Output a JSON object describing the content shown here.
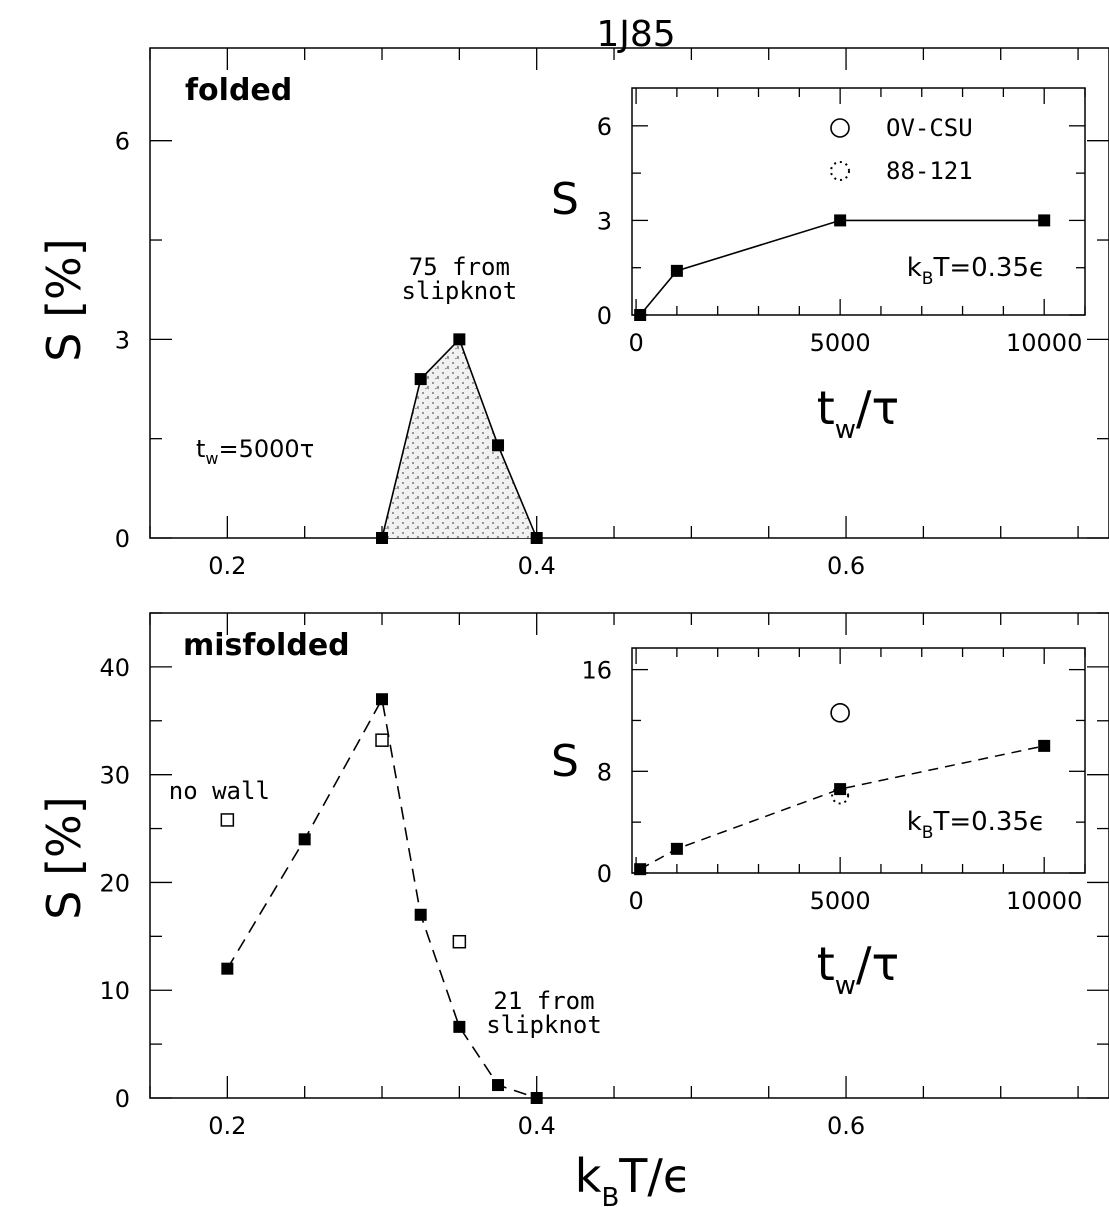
{
  "figure_title": "1J85",
  "chart_data": [
    {
      "id": "folded-main",
      "type": "area",
      "panel_label": "folded",
      "xlabel_main": "k",
      "xlabel_sub": "B",
      "xlabel_tail": "T/ϵ",
      "ylabel": "S [%]",
      "xlim": [
        0.15,
        0.77
      ],
      "ylim": [
        0,
        7.4
      ],
      "xticks": [
        0.2,
        0.4,
        0.6
      ],
      "xtick_labels": [
        "0.2",
        "0.4",
        "0.6"
      ],
      "yticks": [
        0,
        3,
        6
      ],
      "ytick_labels": [
        "0",
        "3",
        "6"
      ],
      "series": [
        {
          "x": [
            0.3,
            0.325,
            0.35,
            0.375,
            0.4
          ],
          "y": [
            0,
            2.4,
            3.0,
            1.4,
            0
          ]
        }
      ],
      "annotations": [
        {
          "text": "75 from",
          "x": 0.35,
          "y": 4.2
        },
        {
          "text": "slipknot",
          "x": 0.35,
          "y": 3.8
        },
        {
          "text_main": "t",
          "text_sub": "w",
          "text_tail": "=5000τ",
          "x": 0.2,
          "y": 1.35
        }
      ]
    },
    {
      "id": "folded-inset",
      "type": "line",
      "xlabel_main": "t",
      "xlabel_sub": "w",
      "xlabel_tail": "/τ",
      "ylabel": "S",
      "xlim": [
        -100,
        11000
      ],
      "ylim": [
        0,
        7.2
      ],
      "xticks": [
        0,
        5000,
        10000
      ],
      "xtick_labels": [
        "0",
        "5000",
        "10000"
      ],
      "yticks": [
        0,
        3,
        6
      ],
      "ytick_labels": [
        "0",
        "3",
        "6"
      ],
      "series": [
        {
          "x": [
            100,
            1000,
            5000,
            10000
          ],
          "y": [
            0,
            1.4,
            3.0,
            3.0
          ]
        }
      ],
      "legend": [
        {
          "label": "OV-CSU",
          "marker": "circle"
        },
        {
          "label": "88-121",
          "marker": "dotted-circle"
        }
      ],
      "condition": {
        "main": "k",
        "sub": "B",
        "tail": "T=0.35ϵ"
      }
    },
    {
      "id": "misfolded-main",
      "type": "line",
      "panel_label": "misfolded",
      "xlabel_main": "k",
      "xlabel_sub": "B",
      "xlabel_tail": "T/ϵ",
      "ylabel": "S [%]",
      "xlim": [
        0.15,
        0.77
      ],
      "ylim": [
        0,
        45
      ],
      "xticks": [
        0.2,
        0.4,
        0.6
      ],
      "xtick_labels": [
        "0.2",
        "0.4",
        "0.6"
      ],
      "yticks": [
        0,
        10,
        20,
        30,
        40
      ],
      "ytick_labels": [
        "0",
        "10",
        "20",
        "30",
        "40"
      ],
      "series": [
        {
          "name": "",
          "marker": "filled-square",
          "line": "dashed",
          "x": [
            0.2,
            0.25,
            0.3,
            0.325,
            0.35,
            0.375,
            0.4
          ],
          "y": [
            12,
            24,
            37,
            17,
            6.6,
            1.2,
            0
          ]
        },
        {
          "name": "",
          "marker": "open-square",
          "line": "none",
          "x": [
            0.2,
            0.3,
            0.35
          ],
          "y": [
            25.8,
            33.2,
            14.5
          ]
        }
      ],
      "annotations": [
        {
          "text": "no wall",
          "x": 0.2,
          "y": 28.4
        },
        {
          "text": "21 from",
          "x": 0.4,
          "y": 8.9
        },
        {
          "text": "slipknot",
          "x": 0.4,
          "y": 6.6
        }
      ]
    },
    {
      "id": "misfolded-inset",
      "type": "line",
      "xlabel_main": "t",
      "xlabel_sub": "w",
      "xlabel_tail": "/τ",
      "ylabel": "S",
      "xlim": [
        -100,
        11000
      ],
      "ylim": [
        0,
        17.7
      ],
      "xticks": [
        0,
        5000,
        10000
      ],
      "xtick_labels": [
        "0",
        "5000",
        "10000"
      ],
      "yticks": [
        0,
        8,
        16
      ],
      "ytick_labels": [
        "0",
        "8",
        "16"
      ],
      "series": [
        {
          "name": "",
          "marker": "filled-square",
          "line": "dashed",
          "x": [
            100,
            1000,
            5000,
            10000
          ],
          "y": [
            0.3,
            1.9,
            6.6,
            10.0
          ]
        },
        {
          "name": "OV-CSU",
          "marker": "circle",
          "line": "none",
          "x": [
            5000
          ],
          "y": [
            12.6
          ]
        },
        {
          "name": "88-121",
          "marker": "dotted-circle",
          "line": "none",
          "x": [
            5000
          ],
          "y": [
            6.1
          ]
        }
      ],
      "condition": {
        "main": "k",
        "sub": "B",
        "tail": "T=0.35ϵ"
      }
    }
  ]
}
